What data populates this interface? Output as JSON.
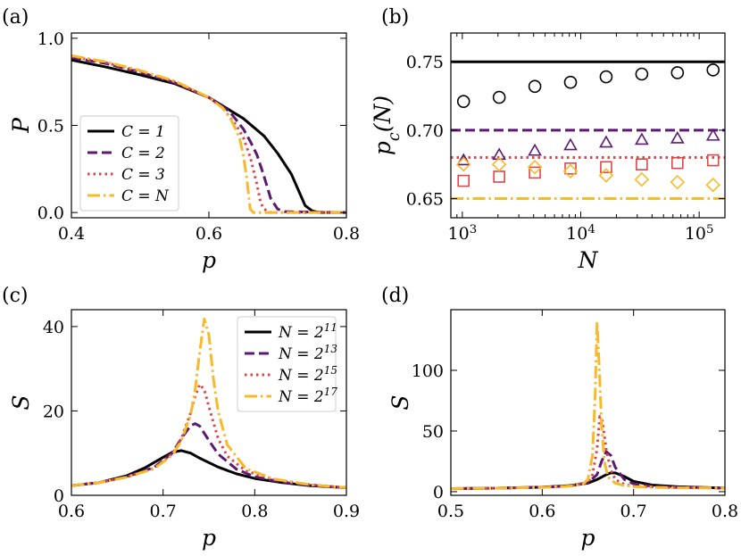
{
  "colors": {
    "c1": "#000000",
    "c2": "#5b1a72",
    "c3": "#d9474b",
    "cN": "#f9b928"
  },
  "chart_data": [
    {
      "id": "a",
      "type": "line",
      "panel_label": "(a)",
      "xlabel": "p",
      "ylabel": "P",
      "xlim": [
        0.4,
        0.8
      ],
      "ylim": [
        -0.03,
        1.03
      ],
      "xticks": [
        0.4,
        0.6,
        0.8
      ],
      "xtick_labels": [
        "0.4",
        "0.6",
        "0.8"
      ],
      "yticks": [
        0.0,
        0.5,
        1.0
      ],
      "ytick_labels": [
        "0.0",
        "0.5",
        "1.0"
      ],
      "legend": {
        "placement": "lower-left",
        "entries": [
          "C = 1",
          "C = 2",
          "C = 3",
          "C = N"
        ]
      },
      "series": [
        {
          "name": "C = 1",
          "color": "#000000",
          "dash": "solid",
          "x": [
            0.4,
            0.45,
            0.5,
            0.55,
            0.6,
            0.65,
            0.68,
            0.7,
            0.72,
            0.73,
            0.74,
            0.75,
            0.76,
            0.8
          ],
          "y": [
            0.875,
            0.835,
            0.79,
            0.74,
            0.66,
            0.54,
            0.44,
            0.34,
            0.22,
            0.13,
            0.04,
            0.01,
            0.0,
            0.0
          ]
        },
        {
          "name": "C = 2",
          "color": "#5b1a72",
          "dash": "dashed",
          "x": [
            0.4,
            0.45,
            0.5,
            0.55,
            0.6,
            0.63,
            0.65,
            0.66,
            0.67,
            0.68,
            0.69,
            0.7,
            0.71,
            0.8
          ],
          "y": [
            0.89,
            0.855,
            0.805,
            0.745,
            0.66,
            0.58,
            0.48,
            0.41,
            0.33,
            0.21,
            0.08,
            0.02,
            0.005,
            0.0
          ]
        },
        {
          "name": "C = 3",
          "color": "#d9474b",
          "dash": "dotted",
          "x": [
            0.4,
            0.45,
            0.5,
            0.55,
            0.6,
            0.62,
            0.64,
            0.65,
            0.66,
            0.67,
            0.675,
            0.68,
            0.69,
            0.8
          ],
          "y": [
            0.895,
            0.86,
            0.81,
            0.75,
            0.66,
            0.6,
            0.5,
            0.43,
            0.32,
            0.16,
            0.06,
            0.02,
            0.0,
            0.0
          ]
        },
        {
          "name": "C = N",
          "color": "#f9b928",
          "dash": "dashdot",
          "x": [
            0.4,
            0.45,
            0.5,
            0.55,
            0.6,
            0.62,
            0.63,
            0.64,
            0.645,
            0.65,
            0.655,
            0.66,
            0.665,
            0.8
          ],
          "y": [
            0.9,
            0.865,
            0.815,
            0.755,
            0.66,
            0.6,
            0.55,
            0.47,
            0.42,
            0.33,
            0.2,
            0.02,
            0.0,
            0.0
          ]
        }
      ]
    },
    {
      "id": "b",
      "type": "scatter",
      "panel_label": "(b)",
      "xlabel": "N",
      "ylabel": "p_c(N)",
      "xscale": "log",
      "xlim": [
        800,
        165000
      ],
      "ylim": [
        0.636,
        0.771
      ],
      "xticks": [
        1000,
        10000,
        100000
      ],
      "xtick_labels": [
        "10^3",
        "10^4",
        "10^5"
      ],
      "yticks": [
        0.65,
        0.7,
        0.75
      ],
      "ytick_labels": [
        "0.65",
        "0.70",
        "0.75"
      ],
      "hlines": [
        {
          "y": 0.75,
          "color": "#000000",
          "dash": "solid"
        },
        {
          "y": 0.7,
          "color": "#5b1a72",
          "dash": "dashed"
        },
        {
          "y": 0.68,
          "color": "#d9474b",
          "dash": "dotted"
        },
        {
          "y": 0.65,
          "color": "#f9b928",
          "dash": "dashdot"
        }
      ],
      "series": [
        {
          "marker": "circle",
          "color": "#000000",
          "x": [
            1024,
            2048,
            4096,
            8192,
            16384,
            32768,
            65536,
            131072
          ],
          "y": [
            0.721,
            0.724,
            0.732,
            0.735,
            0.739,
            0.741,
            0.742,
            0.744
          ]
        },
        {
          "marker": "triangle",
          "color": "#5b1a72",
          "x": [
            1024,
            2048,
            4096,
            8192,
            16384,
            32768,
            65536,
            131072
          ],
          "y": [
            0.678,
            0.682,
            0.685,
            0.689,
            0.691,
            0.693,
            0.694,
            0.696
          ]
        },
        {
          "marker": "square",
          "color": "#d9474b",
          "x": [
            1024,
            2048,
            4096,
            8192,
            16384,
            32768,
            65536,
            131072
          ],
          "y": [
            0.663,
            0.666,
            0.669,
            0.672,
            0.673,
            0.675,
            0.676,
            0.678
          ]
        },
        {
          "marker": "diamond",
          "color": "#f9b928",
          "x": [
            1024,
            2048,
            4096,
            8192,
            16384,
            32768,
            65536,
            131072
          ],
          "y": [
            0.675,
            0.675,
            0.673,
            0.67,
            0.667,
            0.664,
            0.662,
            0.66
          ]
        }
      ]
    },
    {
      "id": "c",
      "type": "line",
      "panel_label": "(c)",
      "xlabel": "p",
      "ylabel": "S",
      "xlim": [
        0.6,
        0.9
      ],
      "ylim": [
        0,
        44
      ],
      "xticks": [
        0.6,
        0.7,
        0.8,
        0.9
      ],
      "xtick_labels": [
        "0.6",
        "0.7",
        "0.8",
        "0.9"
      ],
      "yticks": [
        0,
        20,
        40
      ],
      "ytick_labels": [
        "0",
        "20",
        "40"
      ],
      "legend": {
        "placement": "top-right",
        "entries": [
          "N = 2^11",
          "N = 2^13",
          "N = 2^15",
          "N = 2^17"
        ]
      },
      "series": [
        {
          "name": "N = 2^11",
          "color": "#000000",
          "dash": "solid",
          "x": [
            0.6,
            0.63,
            0.66,
            0.68,
            0.7,
            0.71,
            0.72,
            0.73,
            0.74,
            0.76,
            0.78,
            0.8,
            0.83,
            0.86,
            0.9
          ],
          "y": [
            2.3,
            3.0,
            4.6,
            6.5,
            9.0,
            10.2,
            10.6,
            10.0,
            8.8,
            6.7,
            5.1,
            4.0,
            3.0,
            2.3,
            1.8
          ]
        },
        {
          "name": "N = 2^13",
          "color": "#5b1a72",
          "dash": "dashed",
          "x": [
            0.6,
            0.63,
            0.66,
            0.69,
            0.71,
            0.72,
            0.73,
            0.735,
            0.74,
            0.75,
            0.76,
            0.78,
            0.8,
            0.83,
            0.86,
            0.9
          ],
          "y": [
            2.3,
            3.0,
            4.4,
            6.6,
            10.0,
            13.5,
            16.5,
            17.0,
            16.4,
            13.0,
            9.8,
            6.2,
            4.4,
            3.1,
            2.4,
            1.8
          ]
        },
        {
          "name": "N = 2^15",
          "color": "#d9474b",
          "dash": "dotted",
          "x": [
            0.6,
            0.63,
            0.66,
            0.69,
            0.71,
            0.72,
            0.73,
            0.735,
            0.74,
            0.745,
            0.75,
            0.76,
            0.77,
            0.79,
            0.82,
            0.86,
            0.9
          ],
          "y": [
            2.3,
            3.0,
            4.3,
            6.4,
            9.8,
            13.5,
            19.5,
            23.5,
            26.3,
            25.0,
            21.0,
            13.5,
            9.3,
            5.8,
            3.8,
            2.5,
            1.8
          ]
        },
        {
          "name": "N = 2^17",
          "color": "#f9b928",
          "dash": "dashdot",
          "x": [
            0.6,
            0.63,
            0.66,
            0.69,
            0.71,
            0.72,
            0.73,
            0.735,
            0.74,
            0.745,
            0.75,
            0.755,
            0.76,
            0.77,
            0.79,
            0.82,
            0.86,
            0.9
          ],
          "y": [
            2.3,
            3.0,
            4.3,
            6.3,
            9.5,
            13.0,
            19.0,
            25.0,
            34.0,
            41.8,
            38.0,
            27.5,
            20.0,
            12.0,
            6.4,
            3.9,
            2.5,
            1.8
          ]
        }
      ]
    },
    {
      "id": "d",
      "type": "line",
      "panel_label": "(d)",
      "xlabel": "p",
      "ylabel": "S",
      "xlim": [
        0.5,
        0.8
      ],
      "ylim": [
        -3,
        150
      ],
      "xticks": [
        0.5,
        0.6,
        0.7,
        0.8
      ],
      "xtick_labels": [
        "0.5",
        "0.6",
        "0.7",
        "0.8"
      ],
      "yticks": [
        0,
        50,
        100
      ],
      "ytick_labels": [
        "0",
        "50",
        "100"
      ],
      "series": [
        {
          "name": "N = 2^11",
          "color": "#000000",
          "dash": "solid",
          "x": [
            0.5,
            0.55,
            0.6,
            0.63,
            0.65,
            0.66,
            0.67,
            0.675,
            0.68,
            0.69,
            0.7,
            0.72,
            0.75,
            0.8
          ],
          "y": [
            2.5,
            2.9,
            3.7,
            5.0,
            7.0,
            10.0,
            14.0,
            15.5,
            15.5,
            12.5,
            8.5,
            5.5,
            4.0,
            3.0
          ]
        },
        {
          "name": "N = 2^13",
          "color": "#5b1a72",
          "dash": "dashed",
          "x": [
            0.5,
            0.55,
            0.6,
            0.63,
            0.65,
            0.66,
            0.665,
            0.67,
            0.675,
            0.68,
            0.69,
            0.7,
            0.72,
            0.75,
            0.8
          ],
          "y": [
            2.5,
            2.9,
            3.6,
            4.8,
            7.5,
            14.0,
            25.0,
            33.0,
            30.0,
            20.0,
            10.0,
            6.5,
            4.5,
            3.5,
            3.0
          ]
        },
        {
          "name": "N = 2^15",
          "color": "#d9474b",
          "dash": "dotted",
          "x": [
            0.5,
            0.55,
            0.6,
            0.63,
            0.65,
            0.655,
            0.66,
            0.663,
            0.666,
            0.67,
            0.675,
            0.68,
            0.69,
            0.7,
            0.72,
            0.75,
            0.8
          ],
          "y": [
            2.5,
            2.9,
            3.6,
            4.7,
            7.5,
            14.0,
            35.0,
            62.0,
            58.0,
            35.0,
            18.0,
            10.0,
            6.0,
            4.5,
            3.8,
            3.3,
            3.0
          ]
        },
        {
          "name": "N = 2^17",
          "color": "#f9b928",
          "dash": "dashdot",
          "x": [
            0.5,
            0.55,
            0.6,
            0.63,
            0.645,
            0.65,
            0.655,
            0.658,
            0.66,
            0.662,
            0.665,
            0.668,
            0.672,
            0.68,
            0.69,
            0.7,
            0.72,
            0.75,
            0.8
          ],
          "y": [
            2.5,
            2.9,
            3.5,
            4.5,
            6.5,
            10.0,
            30.0,
            80.0,
            140.0,
            110.0,
            55.0,
            25.0,
            12.0,
            7.0,
            5.0,
            4.2,
            3.6,
            3.2,
            3.0
          ]
        }
      ]
    }
  ]
}
